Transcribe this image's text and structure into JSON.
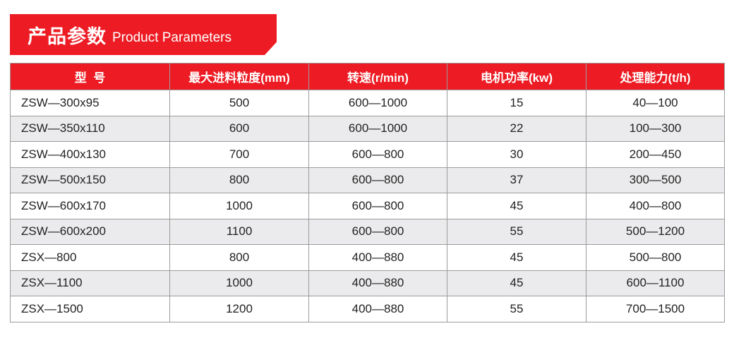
{
  "banner": {
    "title_cn": "产品参数",
    "title_en": "Product Parameters"
  },
  "colors": {
    "accent": "#ed1c24",
    "row_alt": "#ebebed"
  },
  "table": {
    "headers": [
      "型  号",
      "最大进料粒度(mm)",
      "转速(r/min)",
      "电机功率(kw)",
      "处理能力(t/h)"
    ],
    "rows": [
      [
        "ZSW—300x95",
        "500",
        "600—1000",
        "15",
        "40—100"
      ],
      [
        "ZSW—350x110",
        "600",
        "600—1000",
        "22",
        "100—300"
      ],
      [
        "ZSW—400x130",
        "700",
        "600—800",
        "30",
        "200—450"
      ],
      [
        "ZSW—500x150",
        "800",
        "600—800",
        "37",
        "300—500"
      ],
      [
        "ZSW—600x170",
        "1000",
        "600—800",
        "45",
        "400—800"
      ],
      [
        "ZSW—600x200",
        "1100",
        "600—800",
        "55",
        "500—1200"
      ],
      [
        "ZSX—800",
        "800",
        "400—880",
        "45",
        "500—800"
      ],
      [
        "ZSX—1100",
        "1000",
        "400—880",
        "45",
        "600—1100"
      ],
      [
        "ZSX—1500",
        "1200",
        "400—880",
        "55",
        "700—1500"
      ]
    ]
  }
}
